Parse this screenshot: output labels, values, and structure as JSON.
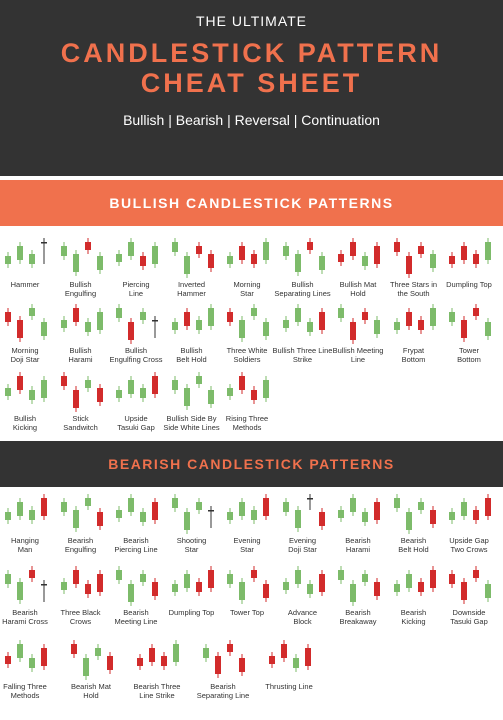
{
  "header": {
    "top_title": "THE ULTIMATE",
    "main_title_line1": "CANDLESTICK PATTERN",
    "main_title_line2": "CHEAT SHEET",
    "subtitle": "Bullish | Bearish | Reversal | Continuation"
  },
  "colors": {
    "accent": "#f0714d",
    "dark": "#333333",
    "bull": "#7dbb6a",
    "bear": "#d22b2b"
  },
  "bullish": {
    "title": "BULLISH CANDLESTICK PATTERNS",
    "patterns": [
      {
        "label": "Hammer",
        "candles": [
          "g",
          "g",
          "g",
          "b"
        ]
      },
      {
        "label": "Bullish\nEngulfing",
        "candles": [
          "g",
          "g",
          "r",
          "g"
        ]
      },
      {
        "label": "Piercing\nLine",
        "candles": [
          "g",
          "g",
          "r",
          "g"
        ]
      },
      {
        "label": "Inverted\nHammer",
        "candles": [
          "g",
          "g",
          "r",
          "r"
        ]
      },
      {
        "label": "Morning\nStar",
        "candles": [
          "g",
          "r",
          "r",
          "g"
        ]
      },
      {
        "label": "Bullish\nSeparating Lines",
        "candles": [
          "g",
          "g",
          "r",
          "g"
        ]
      },
      {
        "label": "Bullish Mat\nHold",
        "candles": [
          "r",
          "r",
          "g",
          "r"
        ]
      },
      {
        "label": "Three Stars in\nthe South",
        "candles": [
          "r",
          "r",
          "r",
          "g"
        ]
      },
      {
        "label": "Dumpling Top",
        "candles": [
          "r",
          "r",
          "r",
          "g"
        ]
      },
      {
        "label": "Morning\nDoji Star",
        "candles": [
          "r",
          "r",
          "g",
          "g"
        ]
      },
      {
        "label": "Bullish\nHarami",
        "candles": [
          "g",
          "r",
          "g",
          "g"
        ]
      },
      {
        "label": "Bullish\nEngulfing Cross",
        "candles": [
          "g",
          "r",
          "g",
          "b"
        ]
      },
      {
        "label": "Bullish\nBelt Hold",
        "candles": [
          "g",
          "r",
          "g",
          "g"
        ]
      },
      {
        "label": "Three White\nSoldiers",
        "candles": [
          "r",
          "g",
          "g",
          "g"
        ]
      },
      {
        "label": "Bullish Three Line\nStrike",
        "candles": [
          "g",
          "g",
          "g",
          "r"
        ]
      },
      {
        "label": "Bullish Meeting\nLine",
        "candles": [
          "g",
          "r",
          "r",
          "g"
        ]
      },
      {
        "label": "Frypat\nBottom",
        "candles": [
          "g",
          "r",
          "r",
          "g"
        ]
      },
      {
        "label": "Tower\nBottom",
        "candles": [
          "g",
          "r",
          "r",
          "g"
        ]
      },
      {
        "label": "Bullish\nKicking",
        "candles": [
          "g",
          "r",
          "g",
          "g"
        ]
      },
      {
        "label": "Stick\nSandwitch",
        "candles": [
          "r",
          "r",
          "g",
          "r"
        ]
      },
      {
        "label": "Upside\nTasuki Gap",
        "candles": [
          "g",
          "g",
          "g",
          "r"
        ]
      },
      {
        "label": "Bullish Side By\nSide White Lines",
        "candles": [
          "g",
          "g",
          "g",
          "g"
        ]
      },
      {
        "label": "Rising Three\nMethods",
        "candles": [
          "g",
          "r",
          "r",
          "g"
        ]
      }
    ]
  },
  "bearish": {
    "title": "BEARISH CANDLESTICK PATTERNS",
    "patterns": [
      {
        "label": "Hanging\nMan",
        "candles": [
          "g",
          "g",
          "g",
          "r"
        ]
      },
      {
        "label": "Bearish\nEngulfing",
        "candles": [
          "g",
          "g",
          "g",
          "r"
        ]
      },
      {
        "label": "Bearish\nPiercing Line",
        "candles": [
          "g",
          "g",
          "g",
          "r"
        ]
      },
      {
        "label": "Shooting\nStar",
        "candles": [
          "g",
          "g",
          "g",
          "b"
        ]
      },
      {
        "label": "Evening\nStar",
        "candles": [
          "g",
          "g",
          "g",
          "r"
        ]
      },
      {
        "label": "Evening\nDoji Star",
        "candles": [
          "g",
          "g",
          "b",
          "r"
        ]
      },
      {
        "label": "Bearish\nHarami",
        "candles": [
          "g",
          "g",
          "g",
          "r"
        ]
      },
      {
        "label": "Bearish\nBelt Hold",
        "candles": [
          "g",
          "g",
          "g",
          "r"
        ]
      },
      {
        "label": "Upside Gap\nTwo Crows",
        "candles": [
          "g",
          "g",
          "r",
          "r"
        ]
      },
      {
        "label": "Bearish\nHarami Cross",
        "candles": [
          "g",
          "g",
          "r",
          "b"
        ]
      },
      {
        "label": "Three Black\nCrows",
        "candles": [
          "g",
          "r",
          "r",
          "r"
        ]
      },
      {
        "label": "Bearish\nMeeting Line",
        "candles": [
          "g",
          "g",
          "g",
          "r"
        ]
      },
      {
        "label": "Dumpling Top",
        "candles": [
          "g",
          "g",
          "r",
          "r"
        ]
      },
      {
        "label": "Tower Top",
        "candles": [
          "g",
          "g",
          "r",
          "r"
        ]
      },
      {
        "label": "Advance\nBlock",
        "candles": [
          "g",
          "g",
          "g",
          "r"
        ]
      },
      {
        "label": "Bearish\nBreakaway",
        "candles": [
          "g",
          "g",
          "g",
          "r"
        ]
      },
      {
        "label": "Bearish\nKicking",
        "candles": [
          "g",
          "g",
          "r",
          "r"
        ]
      },
      {
        "label": "Downside\nTasuki Gap",
        "candles": [
          "r",
          "r",
          "r",
          "g"
        ]
      },
      {
        "label": "Falling Three\nMethods",
        "candles": [
          "r",
          "g",
          "g",
          "r"
        ]
      },
      {
        "label": "Bearish Mat\nHold",
        "candles": [
          "r",
          "g",
          "g",
          "r"
        ]
      },
      {
        "label": "Bearish Three\nLine Strike",
        "candles": [
          "r",
          "r",
          "r",
          "g"
        ]
      },
      {
        "label": "Bearish\nSeparating Line",
        "candles": [
          "g",
          "r",
          "r",
          "r"
        ]
      },
      {
        "label": "Thrusting Line",
        "candles": [
          "r",
          "r",
          "g",
          "r"
        ]
      }
    ]
  }
}
